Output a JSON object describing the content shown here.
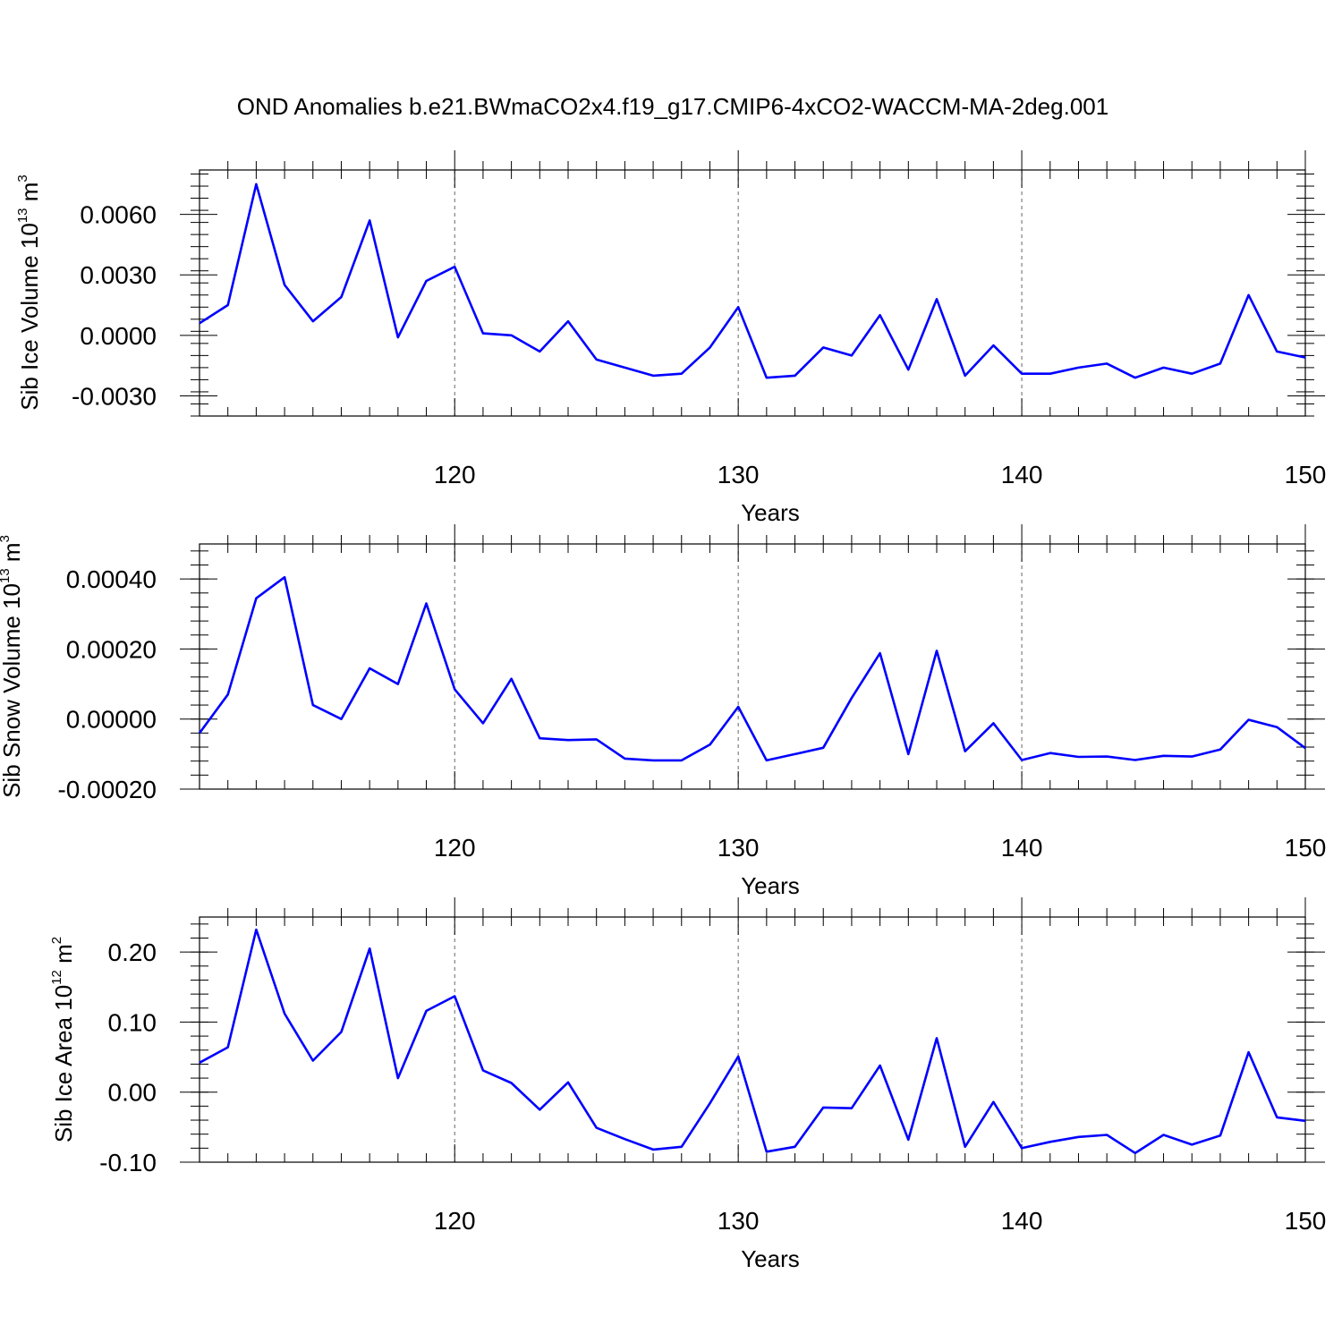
{
  "title": "OND Anomalies b.e21.BWmaCO2x4.f19_g17.CMIP6-4xCO2-WACCM-MA-2deg.001",
  "line_color": "#0000ff",
  "chart_data": [
    {
      "type": "line",
      "ylabel": {
        "text": "Sib Ice Volume 10",
        "exp": "13",
        "unit": " m",
        "unit_exp": "3"
      },
      "xlabel": "Years",
      "xlim": [
        111,
        150
      ],
      "ylim": [
        -0.004,
        0.0082
      ],
      "xticks": [
        "120",
        "130",
        "140",
        "150"
      ],
      "xtick_values": [
        120,
        130,
        140,
        150
      ],
      "yticks": [
        "0.0060",
        "0.0030",
        "0.0000",
        "-0.0030"
      ],
      "ytick_values": [
        0.006,
        0.003,
        0.0,
        -0.003
      ],
      "grid": "vertical dashed at major x ticks",
      "x": [
        111,
        112,
        113,
        114,
        115,
        116,
        117,
        118,
        119,
        120,
        121,
        122,
        123,
        124,
        125,
        126,
        127,
        128,
        129,
        130,
        131,
        132,
        133,
        134,
        135,
        136,
        137,
        138,
        139,
        140,
        141,
        142,
        143,
        144,
        145,
        146,
        147,
        148,
        149,
        150
      ],
      "y": [
        0.0006,
        0.0015,
        0.0075,
        0.0025,
        0.0007,
        0.0019,
        0.0057,
        -0.0001,
        0.0027,
        0.0034,
        0.0001,
        0.0,
        -0.0008,
        0.0007,
        -0.0012,
        -0.0016,
        -0.002,
        -0.0019,
        -0.0006,
        0.0014,
        -0.0021,
        -0.002,
        -0.0006,
        -0.001,
        0.001,
        -0.0017,
        0.0018,
        -0.002,
        -0.0005,
        -0.0019,
        -0.0019,
        -0.0016,
        -0.0014,
        -0.0021,
        -0.0016,
        -0.0019,
        -0.0014,
        0.002,
        -0.0008,
        -0.0011
      ]
    },
    {
      "type": "line",
      "ylabel": {
        "text": "Sib Snow Volume 10",
        "exp": "13",
        "unit": " m",
        "unit_exp": "3"
      },
      "xlabel": "Years",
      "xlim": [
        111,
        150
      ],
      "ylim": [
        -0.0002,
        0.0005
      ],
      "xticks": [
        "120",
        "130",
        "140",
        "150"
      ],
      "xtick_values": [
        120,
        130,
        140,
        150
      ],
      "yticks": [
        "0.00040",
        "0.00020",
        "0.00000",
        "-0.00020"
      ],
      "ytick_values": [
        0.0004,
        0.0002,
        0.0,
        -0.0002
      ],
      "grid": "vertical dashed at major x ticks",
      "x": [
        111,
        112,
        113,
        114,
        115,
        116,
        117,
        118,
        119,
        120,
        121,
        122,
        123,
        124,
        125,
        126,
        127,
        128,
        129,
        130,
        131,
        132,
        133,
        134,
        135,
        136,
        137,
        138,
        139,
        140,
        141,
        142,
        143,
        144,
        145,
        146,
        147,
        148,
        149,
        150
      ],
      "y": [
        -4e-05,
        7e-05,
        0.000345,
        0.000405,
        4e-05,
        0.0,
        0.000145,
        0.0001,
        0.00033,
        8.5e-05,
        -1.2e-05,
        0.000115,
        -5.5e-05,
        -6e-05,
        -5.8e-05,
        -0.000113,
        -0.000118,
        -0.000118,
        -7.3e-05,
        3.5e-05,
        -0.000118,
        -0.0001,
        -8.2e-05,
        6e-05,
        0.000188,
        -0.0001,
        0.000195,
        -9.2e-05,
        -1.2e-05,
        -0.000117,
        -9.7e-05,
        -0.000108,
        -0.000107,
        -0.000117,
        -0.000105,
        -0.000107,
        -8.7e-05,
        -2e-06,
        -2.3e-05,
        -8.3e-05
      ]
    },
    {
      "type": "line",
      "ylabel": {
        "text": "Sib Ice Area 10",
        "exp": "12",
        "unit": " m",
        "unit_exp": "2"
      },
      "xlabel": "Years",
      "xlim": [
        111,
        150
      ],
      "ylim": [
        -0.1,
        0.25
      ],
      "xticks": [
        "120",
        "130",
        "140",
        "150"
      ],
      "xtick_values": [
        120,
        130,
        140,
        150
      ],
      "yticks": [
        "0.20",
        "0.10",
        "0.00",
        "-0.10"
      ],
      "ytick_values": [
        0.2,
        0.1,
        0.0,
        -0.1
      ],
      "grid": "vertical dashed at major x ticks",
      "x": [
        111,
        112,
        113,
        114,
        115,
        116,
        117,
        118,
        119,
        120,
        121,
        122,
        123,
        124,
        125,
        126,
        127,
        128,
        129,
        130,
        131,
        132,
        133,
        134,
        135,
        136,
        137,
        138,
        139,
        140,
        141,
        142,
        143,
        144,
        145,
        146,
        147,
        148,
        149,
        150
      ],
      "y": [
        0.042,
        0.064,
        0.232,
        0.112,
        0.045,
        0.086,
        0.205,
        0.02,
        0.116,
        0.137,
        0.031,
        0.013,
        -0.025,
        0.014,
        -0.051,
        -0.067,
        -0.082,
        -0.078,
        -0.016,
        0.051,
        -0.085,
        -0.078,
        -0.022,
        -0.023,
        0.038,
        -0.068,
        0.077,
        -0.078,
        -0.014,
        -0.08,
        -0.071,
        -0.064,
        -0.061,
        -0.087,
        -0.061,
        -0.075,
        -0.062,
        0.057,
        -0.036,
        -0.041
      ]
    }
  ]
}
